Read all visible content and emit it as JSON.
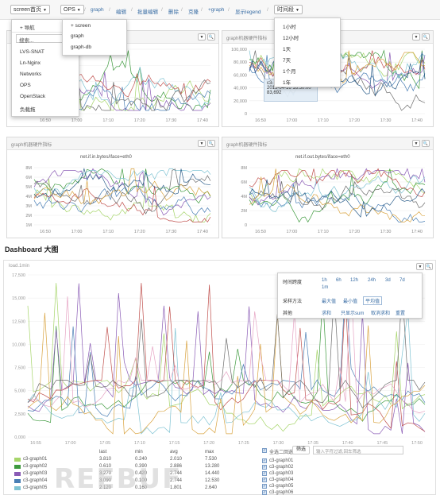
{
  "toolbar": {
    "screen_select": "screen首页",
    "ops_select": "OPS",
    "links": [
      "graph",
      "编辑",
      "批量编辑",
      "删除",
      "克隆",
      "+graph",
      "显示legend"
    ],
    "time_select": "时间段"
  },
  "screen_menu": {
    "nav_label": "+ 导航",
    "search_placeholder": "搜索...",
    "items": [
      "LVS-SNAT",
      "Ln-Nginx",
      "Networks",
      "OPS",
      "OpenStack",
      "负载拖"
    ]
  },
  "ops_menu": {
    "items": [
      "+ screen",
      "graph",
      "graph-db"
    ]
  },
  "time_menu": {
    "items": [
      "1小时",
      "12小时",
      "1天",
      "7天",
      "1个月",
      "1年"
    ]
  },
  "panels": [
    {
      "title": "gr",
      "subtitle": "",
      "ylabels": [],
      "xlabels": [
        "16:50",
        "17:00",
        "17:10",
        "17:20",
        "17:30",
        "17:40"
      ]
    },
    {
      "title": "graph机器硬件指标",
      "subtitle": "",
      "ylabels": [
        "100,000",
        "80,000",
        "60,000",
        "40,000",
        "20,000",
        "0"
      ],
      "xlabels": [
        "16:50",
        "17:00",
        "17:10",
        "17:20",
        "17:30",
        "17:40"
      ]
    },
    {
      "title": "graph机器硬件指标",
      "subtitle": "net.if.in.bytes/iface=eth0",
      "ylabels": [
        "8M",
        "6M",
        "5M",
        "4M",
        "3M",
        "2M",
        "1M"
      ],
      "xlabels": [
        "16:50",
        "17:00",
        "17:10",
        "17:20",
        "17:30",
        "17:40"
      ]
    },
    {
      "title": "graph机器硬件指标",
      "subtitle": "net.if.out.bytes/iface=eth0",
      "ylabels": [
        "8M",
        "6M",
        "4M",
        "2M",
        "0"
      ],
      "xlabels": [
        "16:50",
        "17:00",
        "17:10",
        "17:20",
        "17:30",
        "17:40"
      ]
    }
  ],
  "tooltip": {
    "line1": "c3-",
    "line2": "2015-04-16 16:50:00",
    "line3": "83,692"
  },
  "section_title": "Dashboard 大图",
  "big_chart": {
    "title": "load.1min",
    "ylabels": [
      "17,500",
      "15,000",
      "12,500",
      "10,000",
      "7,500",
      "5,000",
      "2,500",
      "0,000"
    ],
    "xlabels": [
      "16:55",
      "17:00",
      "17:05",
      "17:10",
      "17:15",
      "17:20",
      "17:25",
      "17:30",
      "17:35",
      "17:40",
      "17:45",
      "17:50"
    ]
  },
  "options": {
    "time_span_label": "时间跨度",
    "time_spans": [
      "1h",
      "6h",
      "12h",
      "24h",
      "3d",
      "7d",
      "1m"
    ],
    "sampling_label": "采样方法",
    "sampling": [
      "最大值",
      "最小值",
      "平均值"
    ],
    "other_label": "其他",
    "other": [
      "求和",
      "只显示sum",
      "取消求和",
      "重置"
    ]
  },
  "legend": {
    "headers": [
      "last",
      "min",
      "avg",
      "max"
    ],
    "rows": [
      {
        "name": "c3-graph01",
        "color": "#a6d56a",
        "vals": [
          "3.810",
          "0.240",
          "2.010",
          "7.530"
        ]
      },
      {
        "name": "c3-graph02",
        "color": "#3e9a3e",
        "vals": [
          "0.610",
          "0.390",
          "2.886",
          "13.280"
        ]
      },
      {
        "name": "c3-graph03",
        "color": "#8a5bb5",
        "vals": [
          "3.270",
          "0.420",
          "2.744",
          "14.440"
        ]
      },
      {
        "name": "c3-graph04",
        "color": "#4a7fb5",
        "vals": [
          "3.090",
          "0.100",
          "2.744",
          "12.530"
        ]
      },
      {
        "name": "c3-graph05",
        "color": "#7fc3d3",
        "vals": [
          "2.120",
          "0.160",
          "1.801",
          "2.640"
        ]
      }
    ],
    "select_all": "全选二回选",
    "select_label": "筛选",
    "search_placeholder": "输入字符过滤,回车筛选",
    "checklist": [
      "c3-graph01",
      "c3-graph02",
      "c3-graph03",
      "c3-graph04",
      "c3-graph05",
      "c3-graph06"
    ]
  },
  "watermark": "REEBUF",
  "colors": {
    "link": "#3a6ea5",
    "toolbar_bg": "#f7f7f7",
    "panel_border": "#d9d9d9"
  }
}
